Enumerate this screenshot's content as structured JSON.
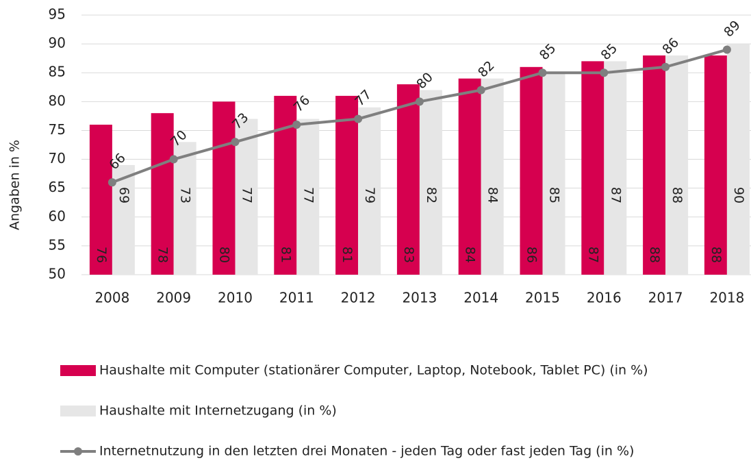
{
  "chart_data": {
    "type": "bar",
    "y_label": "Angaben in %",
    "categories": [
      "2008",
      "2009",
      "2010",
      "2011",
      "2012",
      "2013",
      "2014",
      "2015",
      "2016",
      "2017",
      "2018"
    ],
    "series": [
      {
        "name": "Haushalte mit Computer (stationärer Computer, Laptop, Notebook, Tablet PC) (in %)",
        "type": "bar",
        "color": "#d6004f",
        "values": [
          76,
          78,
          80,
          81,
          81,
          83,
          84,
          86,
          87,
          88,
          88
        ]
      },
      {
        "name": "Haushalte mit Internetzugang (in %)",
        "type": "bar",
        "color": "#e6e6e6",
        "values": [
          69,
          73,
          77,
          77,
          79,
          82,
          84,
          85,
          87,
          88,
          90
        ]
      },
      {
        "name": "Internetnutzung in den letzten drei Monaten - jeden Tag oder fast jeden Tag (in %)",
        "type": "line",
        "color": "#7f7f7f",
        "values": [
          66,
          70,
          73,
          76,
          77,
          80,
          82,
          85,
          85,
          86,
          89
        ]
      }
    ],
    "ylim": [
      50,
      95
    ],
    "yticks": [
      50,
      55,
      60,
      65,
      70,
      75,
      80,
      85,
      90,
      95
    ],
    "grid": true
  }
}
